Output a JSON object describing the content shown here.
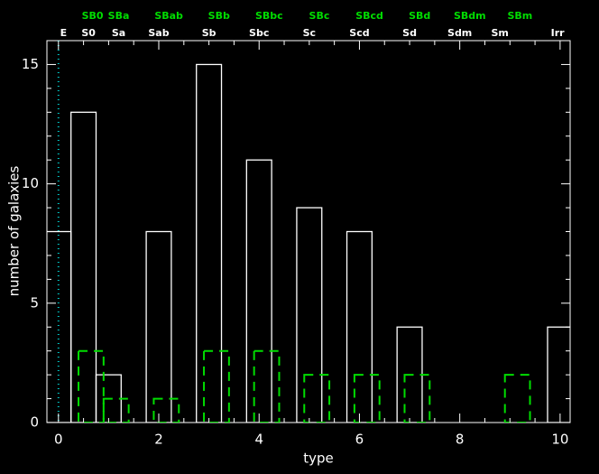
{
  "chart_data": {
    "type": "bar",
    "xlabel": "type",
    "ylabel": "number of galaxies",
    "xlim": [
      -0.23,
      10.2
    ],
    "ylim": [
      0,
      16
    ],
    "xticks": [
      0,
      2,
      4,
      6,
      8,
      10
    ],
    "yticks": [
      0,
      5,
      10,
      15
    ],
    "x_minor_ticks": [
      0.5,
      1,
      1.5,
      2.5,
      3,
      3.5,
      4.5,
      5,
      5.5,
      6.5,
      7,
      7.5,
      8.5,
      9,
      9.5
    ],
    "y_minor_ticks": [
      1,
      2,
      3,
      4,
      6,
      7,
      8,
      9,
      11,
      12,
      13,
      14
    ],
    "vline": {
      "x": 0,
      "color": "#00c8c8"
    },
    "series": [
      {
        "color": "#ffffff",
        "dashed": false,
        "x": [
          0,
          0.5,
          1,
          2,
          3,
          4,
          5,
          6,
          7,
          8,
          9,
          10
        ],
        "values": [
          8,
          13,
          2,
          8,
          15,
          11,
          9,
          8,
          4,
          0,
          0,
          4
        ]
      },
      {
        "color": "#00dd00",
        "dashed": true,
        "x": [
          0.65,
          1.15,
          2.15,
          3.15,
          4.15,
          5.15,
          6.15,
          7.15,
          8.15,
          9.15,
          10.15
        ],
        "values": [
          3,
          1,
          1,
          3,
          3,
          2,
          2,
          2,
          0,
          2,
          0
        ]
      }
    ],
    "top_labels": [
      {
        "color": "#ffffff",
        "x": [
          0.1,
          0.6,
          1.2,
          2,
          3,
          4,
          5,
          6,
          7,
          8,
          8.8,
          9.95
        ],
        "labels": [
          "E",
          "S0",
          "Sa",
          "Sab",
          "Sb",
          "Sbc",
          "Sc",
          "Scd",
          "Sd",
          "Sdm",
          "Sm",
          "Irr"
        ]
      },
      {
        "color": "#00dd00",
        "x": [
          0.68,
          1.2,
          2.2,
          3.2,
          4.2,
          5.2,
          6.2,
          7.2,
          8.2,
          9.2
        ],
        "labels": [
          "SB0",
          "SBa",
          "SBab",
          "SBb",
          "SBbc",
          "SBc",
          "SBcd",
          "SBd",
          "SBdm",
          "SBm"
        ]
      }
    ]
  }
}
